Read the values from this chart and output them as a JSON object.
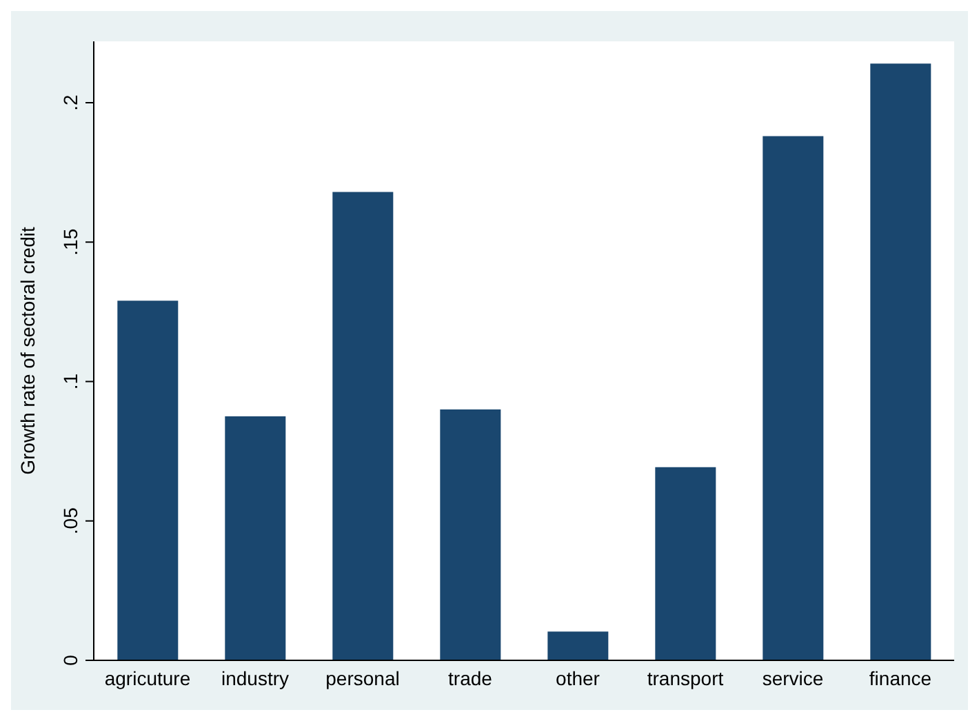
{
  "chart_data": {
    "type": "bar",
    "ylabel": "Growth rate of sectoral credit",
    "categories": [
      "agricuture",
      "industry",
      "personal",
      "trade",
      "other",
      "transport",
      "service",
      "finance"
    ],
    "values": [
      0.129,
      0.0875,
      0.168,
      0.09,
      0.0103,
      0.0693,
      0.188,
      0.214
    ],
    "color": "#1a476f",
    "ylim": [
      0,
      0.222
    ],
    "yticks": [
      {
        "value": 0,
        "label": "0"
      },
      {
        "value": 0.05,
        "label": ".05"
      },
      {
        "value": 0.1,
        "label": ".1"
      },
      {
        "value": 0.15,
        "label": ".15"
      },
      {
        "value": 0.2,
        "label": ".2"
      }
    ],
    "grid": false
  }
}
